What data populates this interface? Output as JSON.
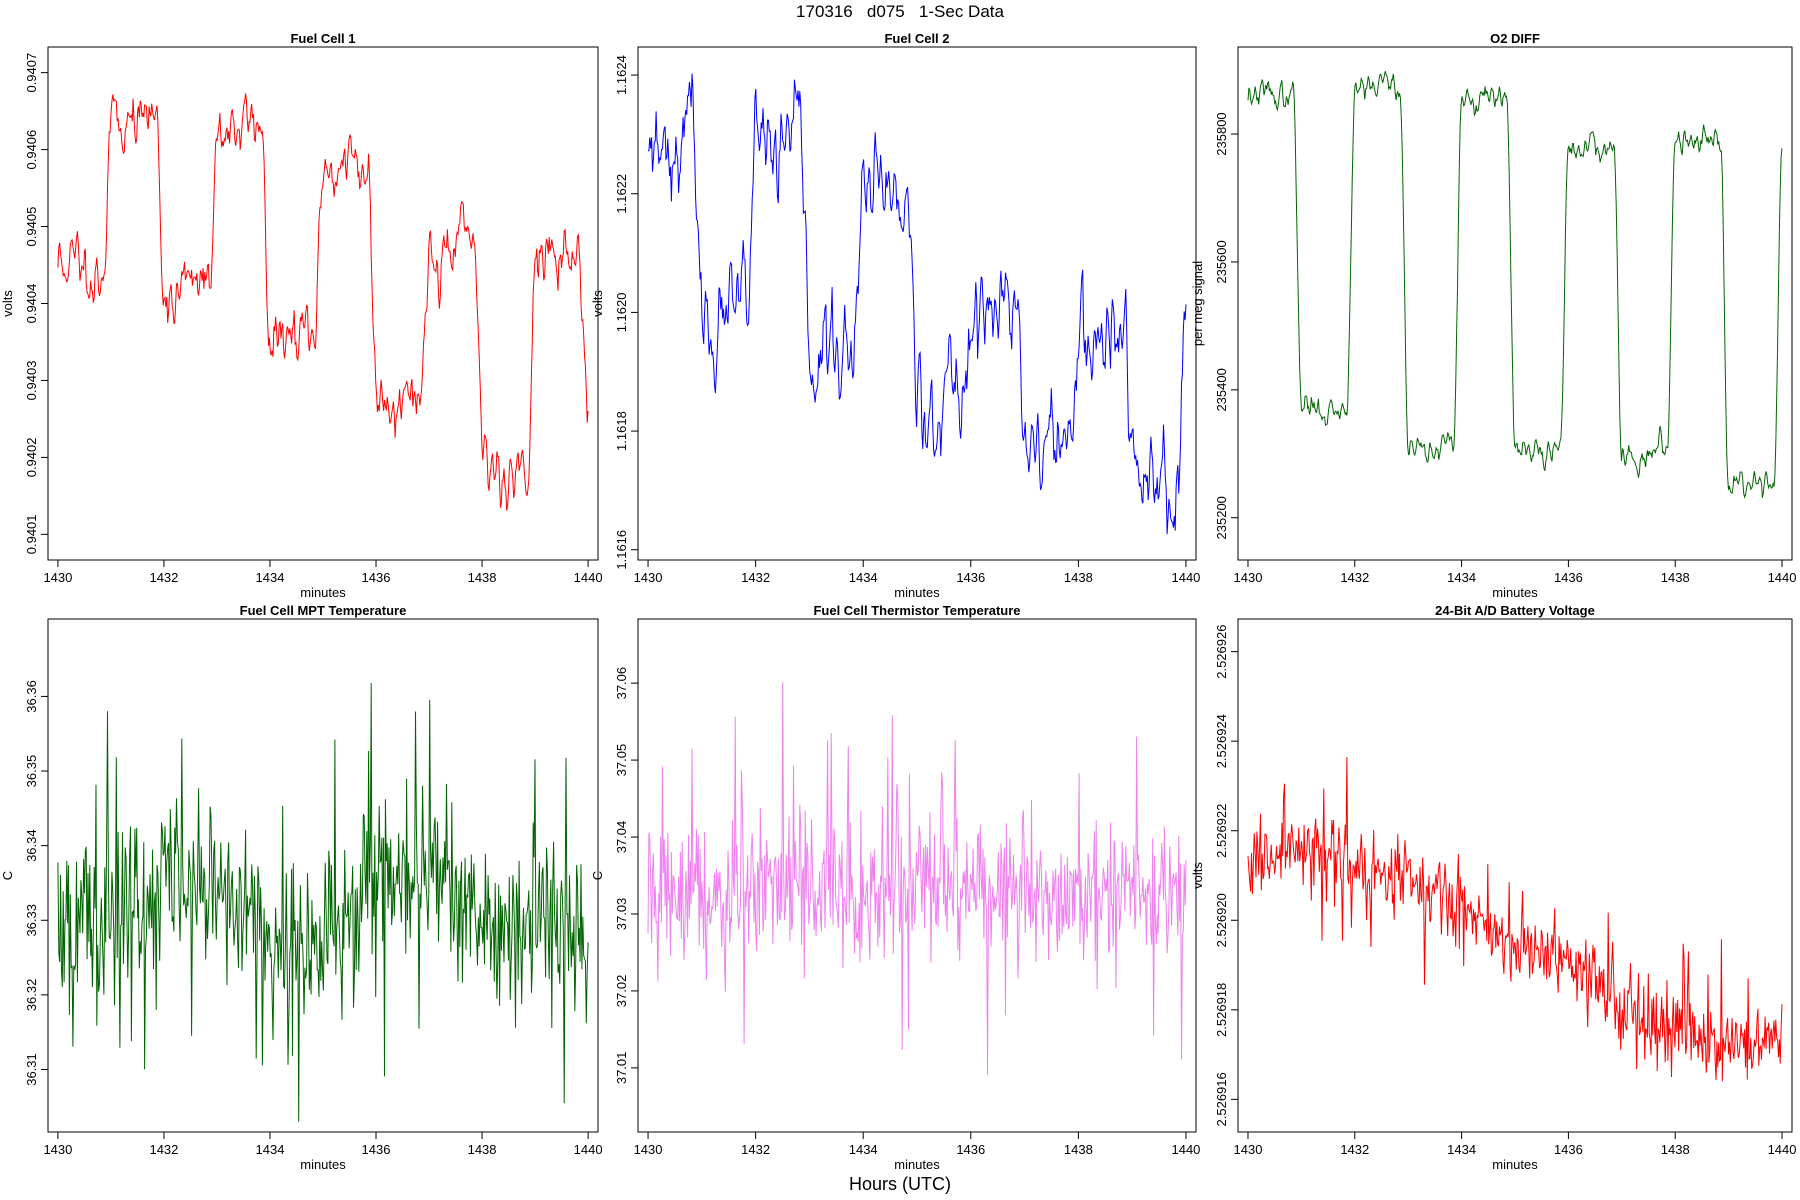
{
  "header": {
    "title": "170316   d075   1-Sec Data"
  },
  "footer": {
    "xlabel": "Hours (UTC)"
  },
  "chart_data": [
    {
      "type": "line",
      "title": "Fuel Cell 1",
      "xlabel": "minutes",
      "ylabel": "volts",
      "color": "#ff0000",
      "xlim": [
        1430,
        1440
      ],
      "ylim": [
        0.94008,
        0.94072
      ],
      "xticks": [
        "1430",
        "1432",
        "1434",
        "1436",
        "1438",
        "1440"
      ],
      "yticks": [
        "0.9401",
        "0.9402",
        "0.9403",
        "0.9404",
        "0.9405",
        "0.9406",
        "0.9407"
      ],
      "shape": "square",
      "levels": [
        0.94045,
        0.94064,
        0.94042,
        0.94063,
        0.94035,
        0.94058,
        0.94029,
        0.94047,
        0.94019,
        0.94046,
        0.94028
      ],
      "noise": 2.2e-05,
      "n": 600,
      "seed": 11
    },
    {
      "type": "line",
      "title": "Fuel Cell 2",
      "xlabel": "minutes",
      "ylabel": "volts",
      "color": "#0000ff",
      "xlim": [
        1430,
        1440
      ],
      "ylim": [
        1.1616,
        1.16243
      ],
      "xticks": [
        "1430",
        "1432",
        "1434",
        "1436",
        "1438",
        "1440"
      ],
      "yticks": [
        "1.1616",
        "1.1618",
        "1.1620",
        "1.1622",
        "1.1624"
      ],
      "shape": "square",
      "levels": [
        1.1623,
        1.16199,
        1.16226,
        1.16193,
        1.16218,
        1.16186,
        1.162,
        1.16178,
        1.16195,
        1.16173,
        1.162
      ],
      "noise": 4.5e-05,
      "n": 600,
      "seed": 23
    },
    {
      "type": "line",
      "title": "O2 DIFF",
      "xlabel": "minutes",
      "ylabel": "per meg signal",
      "color": "#006400",
      "xlim": [
        1430,
        1440
      ],
      "ylim": [
        235150,
        235920
      ],
      "xticks": [
        "1430",
        "1432",
        "1434",
        "1436",
        "1438",
        "1440"
      ],
      "yticks": [
        "235200",
        "235400",
        "235600",
        "235800"
      ],
      "shape": "square",
      "levels": [
        235860,
        235370,
        235880,
        235310,
        235850,
        235300,
        235780,
        235300,
        235800,
        235260,
        235790
      ],
      "noise": 12,
      "n": 600,
      "seed": 37
    },
    {
      "type": "line",
      "title": "Fuel Cell MPT Temperature",
      "xlabel": "minutes",
      "ylabel": "C",
      "color": "#006400",
      "xlim": [
        1430,
        1440
      ],
      "ylim": [
        36.303,
        36.369
      ],
      "xticks": [
        "1430",
        "1432",
        "1434",
        "1436",
        "1438",
        "1440"
      ],
      "yticks": [
        "36.31",
        "36.32",
        "36.33",
        "36.34",
        "36.35",
        "36.36"
      ],
      "shape": "noise",
      "base": 36.33,
      "trend": [
        0.0,
        0.0,
        0.005,
        0.006,
        -0.004,
        -0.004,
        0.007,
        0.008,
        0.0,
        0.0,
        0.0
      ],
      "noise": 0.0095,
      "n": 600,
      "seed": 51
    },
    {
      "type": "line",
      "title": "Fuel Cell Thermistor Temperature",
      "xlabel": "minutes",
      "ylabel": "C",
      "color": "#ee82ee",
      "xlim": [
        1430,
        1440
      ],
      "ylim": [
        37.003,
        37.067
      ],
      "xticks": [
        "1430",
        "1432",
        "1434",
        "1436",
        "1438",
        "1440"
      ],
      "yticks": [
        "37.01",
        "37.02",
        "37.03",
        "37.04",
        "37.05",
        "37.06"
      ],
      "shape": "noise",
      "base": 37.032,
      "trend": [
        0.0,
        0.001,
        0.001,
        0.0,
        0.0,
        0.001,
        0.0,
        0.001,
        0.0,
        0.0,
        0.0
      ],
      "noise": 0.0075,
      "n": 600,
      "seed": 67
    },
    {
      "type": "line",
      "title": "24-Bit A/D Battery Voltage",
      "xlabel": "minutes",
      "ylabel": "volts",
      "color": "#ff0000",
      "xlim": [
        1430,
        1440
      ],
      "ylim": [
        2.5269155,
        2.5269265
      ],
      "xticks": [
        "1430",
        "1432",
        "1434",
        "1436",
        "1438",
        "1440"
      ],
      "yticks": [
        "2.526916",
        "2.526918",
        "2.526920",
        "2.526922",
        "2.526924",
        "2.526926"
      ],
      "shape": "noise",
      "base": 2.5269212,
      "trend": [
        0.0,
        5e-07,
        0.0,
        -3e-07,
        -1e-06,
        -1.8e-06,
        -2.2e-06,
        -3e-06,
        -3.7e-06,
        -4e-06,
        -3.8e-06
      ],
      "noise": 7e-07,
      "n": 600,
      "seed": 83
    }
  ]
}
